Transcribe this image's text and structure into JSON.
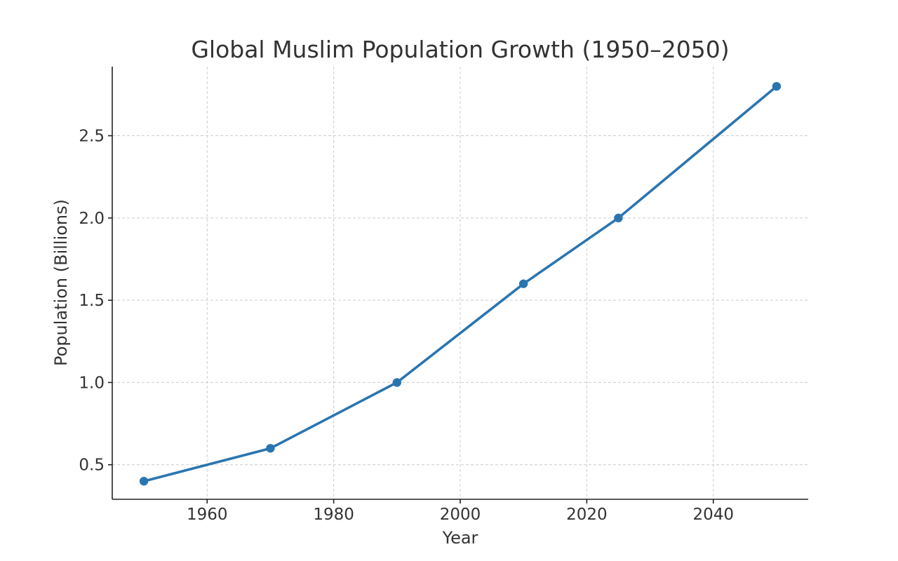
{
  "chart_data": {
    "type": "line",
    "title": "Global Muslim Population Growth (1950–2050)",
    "xlabel": "Year",
    "ylabel": "Population (Billions)",
    "xlim": [
      1945,
      2055
    ],
    "ylim": [
      0.29,
      2.92
    ],
    "xticks": [
      1960,
      1980,
      2000,
      2020,
      2040
    ],
    "yticks": [
      0.5,
      1.0,
      1.5,
      2.0,
      2.5
    ],
    "grid": true,
    "series": [
      {
        "color": "#2a75b0",
        "x": [
          1950,
          1970,
          1990,
          2010,
          2025,
          2050
        ],
        "y": [
          0.4,
          0.6,
          1.0,
          1.6,
          2.0,
          2.8
        ]
      }
    ]
  }
}
